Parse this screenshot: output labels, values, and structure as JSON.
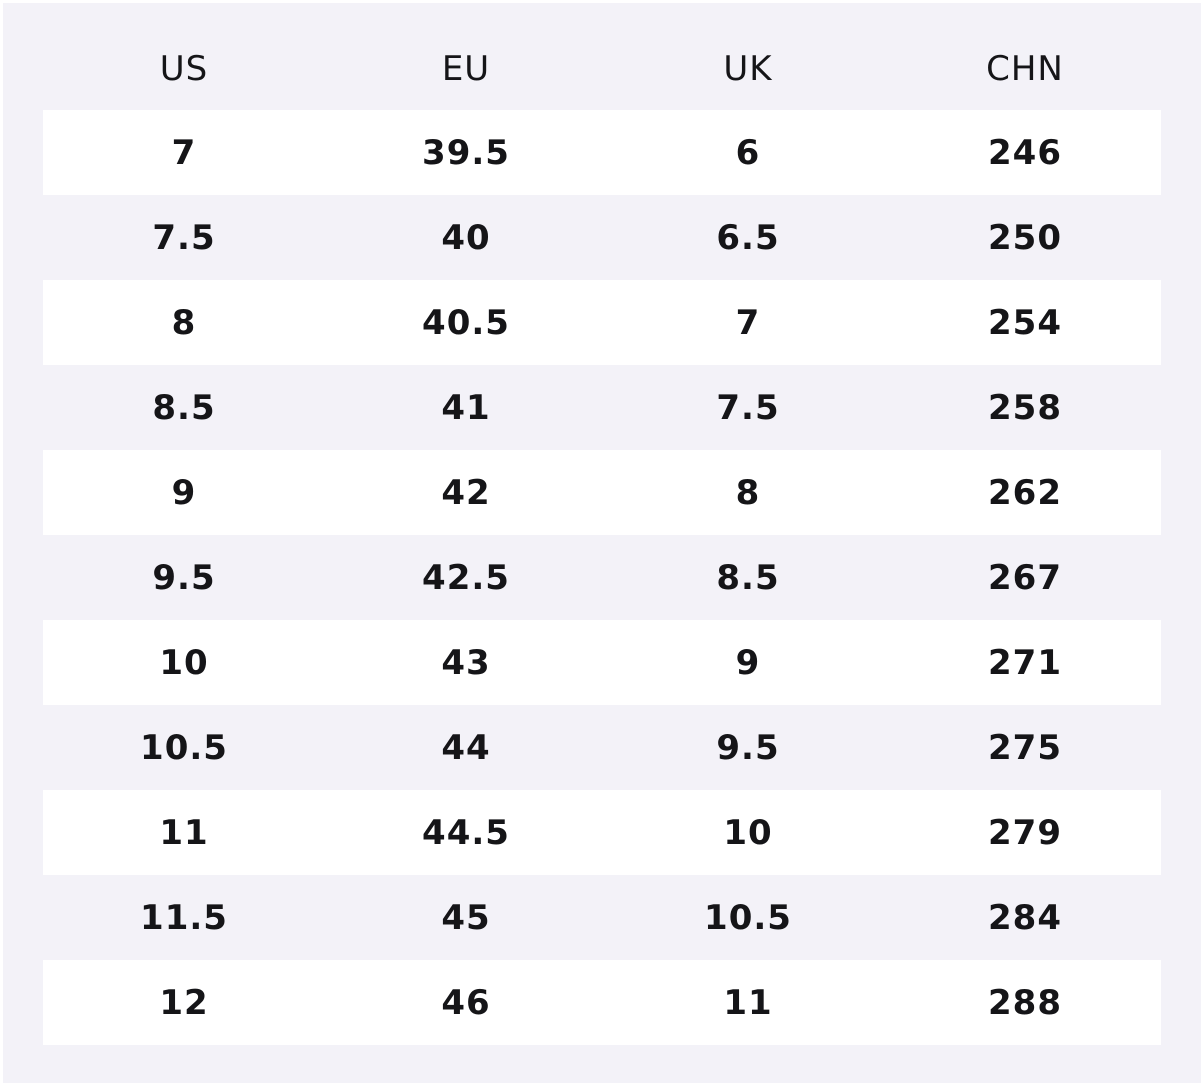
{
  "table": {
    "headers": [
      "US",
      "EU",
      "UK",
      "CHN"
    ],
    "rows": [
      [
        "7",
        "39.5",
        "6",
        "246"
      ],
      [
        "7.5",
        "40",
        "6.5",
        "250"
      ],
      [
        "8",
        "40.5",
        "7",
        "254"
      ],
      [
        "8.5",
        "41",
        "7.5",
        "258"
      ],
      [
        "9",
        "42",
        "8",
        "262"
      ],
      [
        "9.5",
        "42.5",
        "8.5",
        "267"
      ],
      [
        "10",
        "43",
        "9",
        "271"
      ],
      [
        "10.5",
        "44",
        "9.5",
        "275"
      ],
      [
        "11",
        "44.5",
        "10",
        "279"
      ],
      [
        "11.5",
        "45",
        "10.5",
        "284"
      ],
      [
        "12",
        "46",
        "11",
        "288"
      ]
    ]
  }
}
